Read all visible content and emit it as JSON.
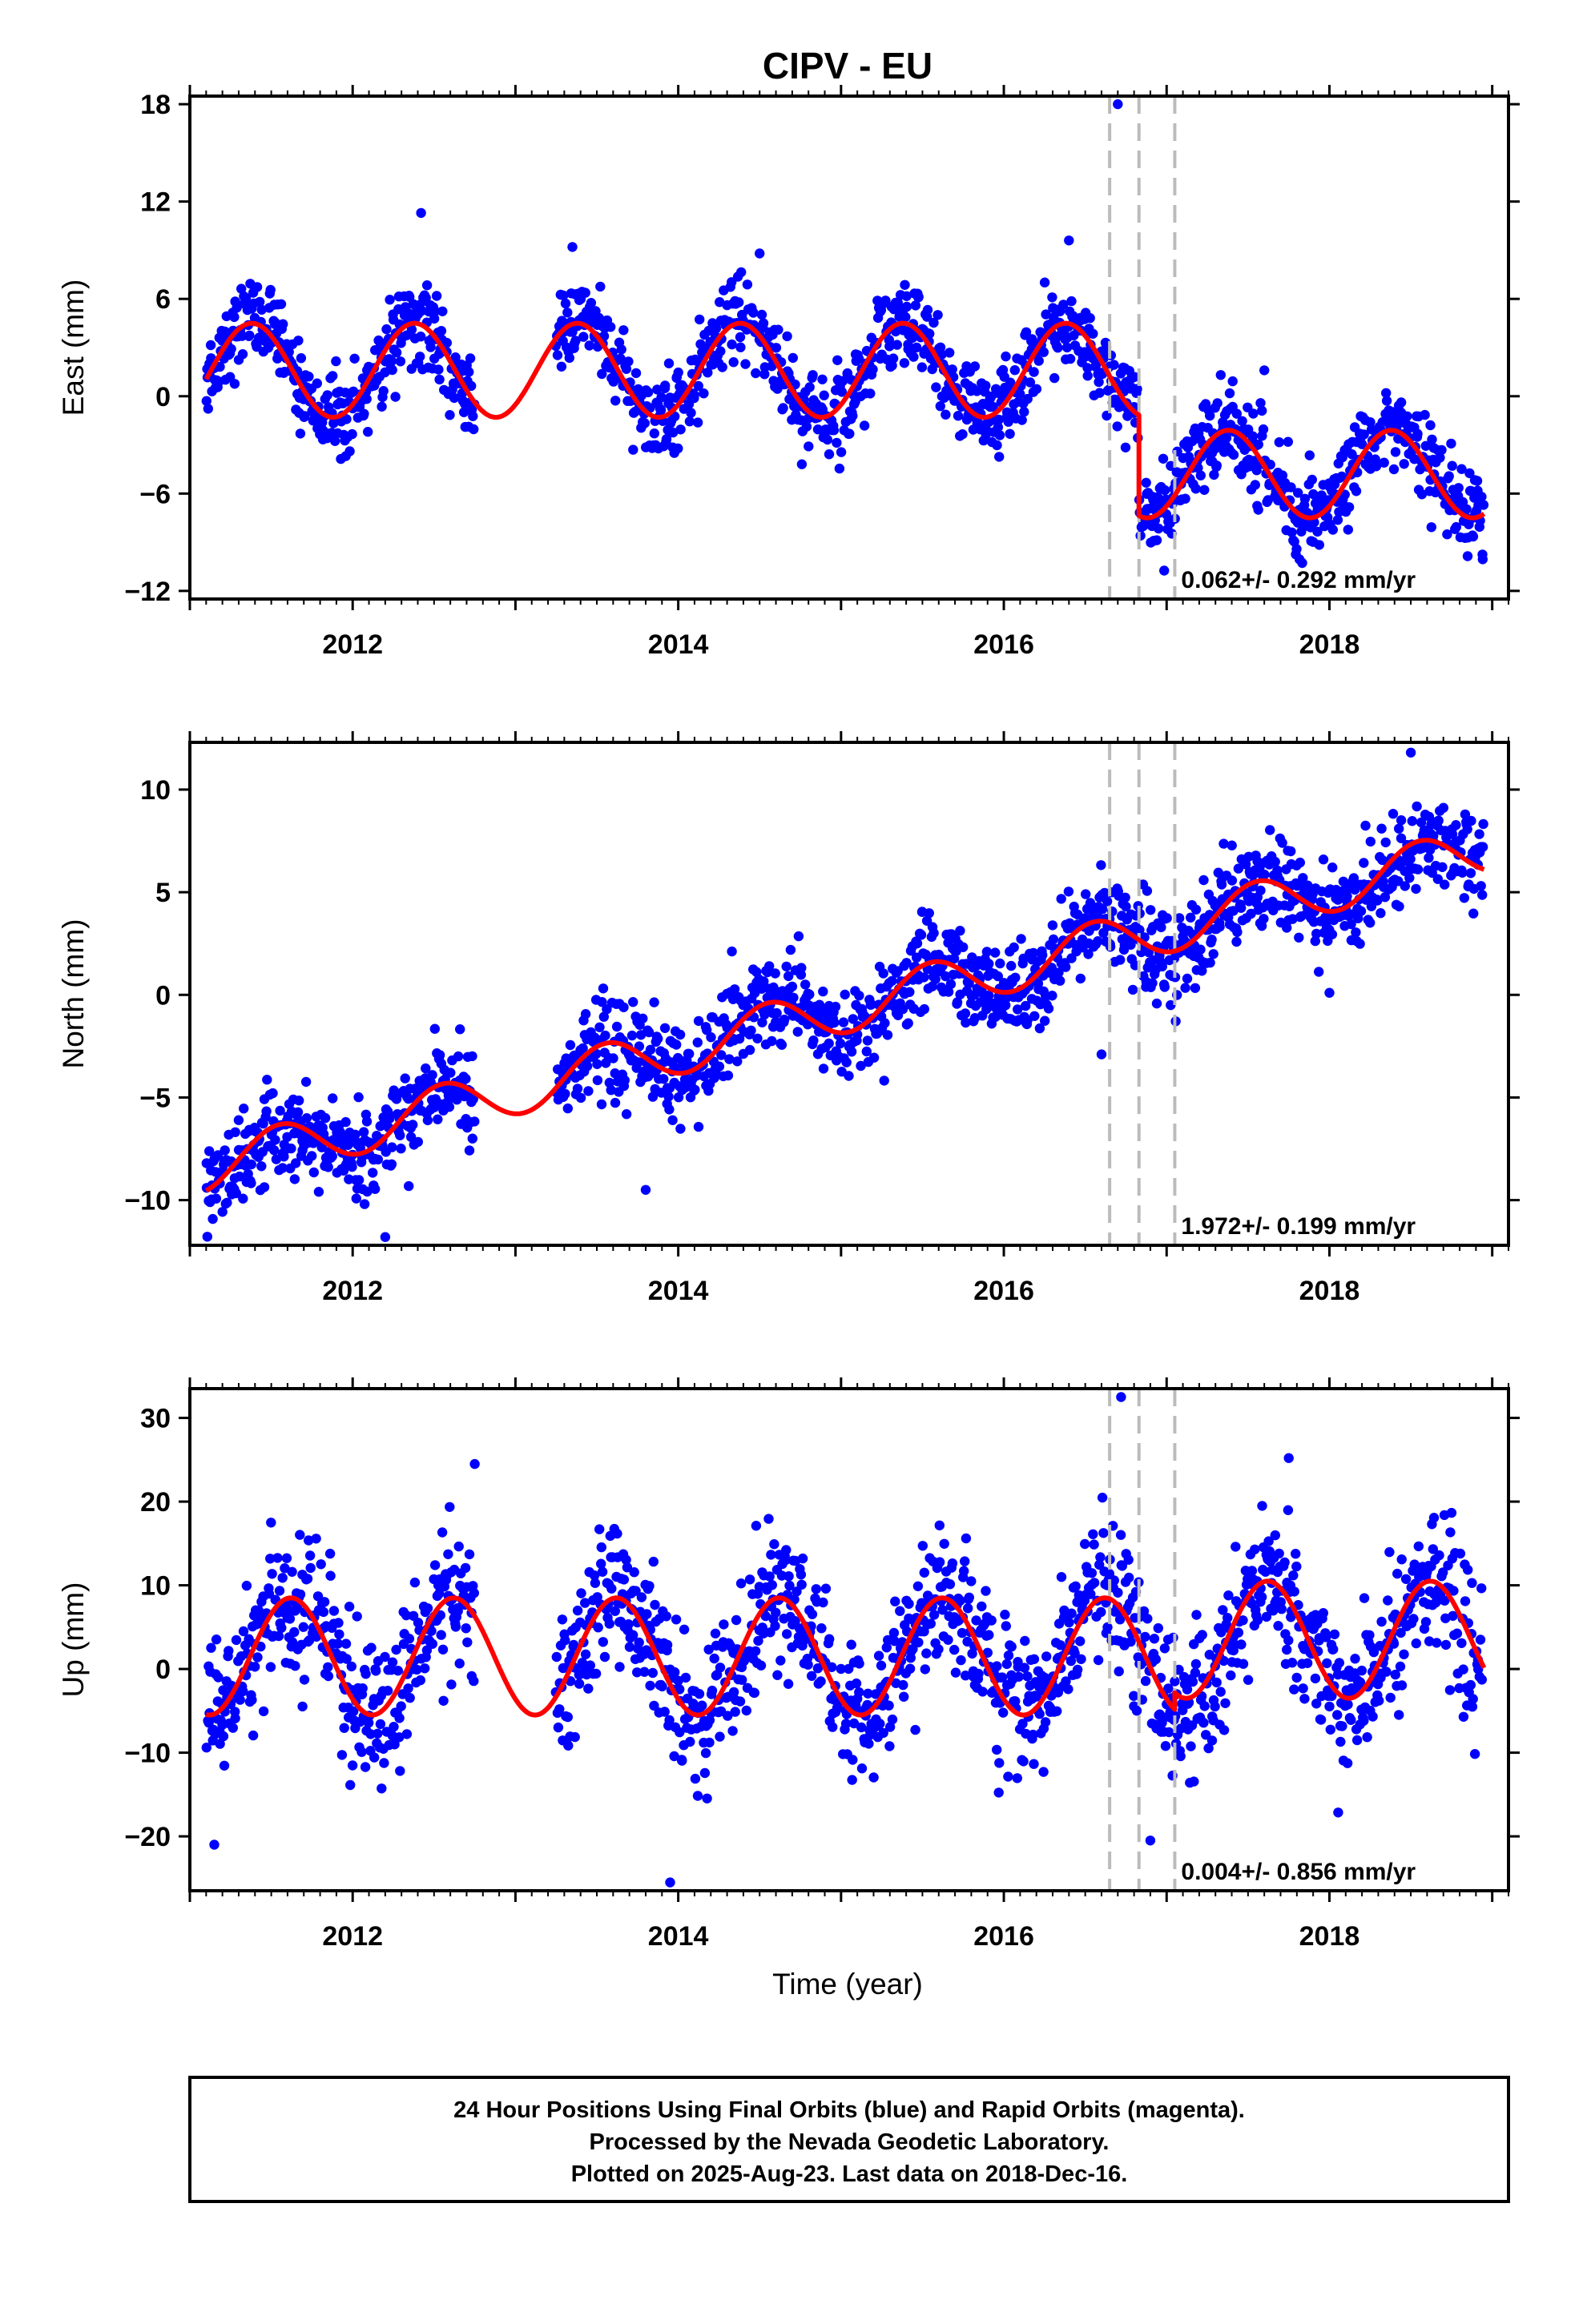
{
  "title": "CIPV - EU",
  "chart_data": [
    {
      "type": "scatter",
      "component": "East",
      "ylabel": "East (mm)",
      "xlabel": "",
      "xlim": [
        2011.0,
        2019.1
      ],
      "ylim": [
        -12.5,
        18.5
      ],
      "yticks": [
        -12,
        -6,
        0,
        6,
        12,
        18
      ],
      "xticks": [
        2012,
        2014,
        2016,
        2018
      ],
      "rate_label": "0.062+/- 0.292 mm/yr",
      "grid": false,
      "offset_lines": [
        2016.65,
        2016.83,
        2017.05
      ],
      "model": {
        "segments": [
          {
            "t0": 2011.1,
            "t1": 2016.83,
            "base": 1.6,
            "trend": 0.0,
            "amp": 2.9,
            "peak": 2011.38
          },
          {
            "t0": 2016.83,
            "t1": 2018.95,
            "base": -4.8,
            "trend": 0.0,
            "amp": 2.7,
            "peak": 2017.38
          }
        ],
        "observed_spans": [
          [
            2011.1,
            2012.75
          ],
          [
            2013.25,
            2018.95
          ]
        ],
        "spread": 1.3,
        "outliers": [
          [
            2016.7,
            18.0
          ],
          [
            2012.42,
            11.3
          ],
          [
            2013.35,
            9.2
          ],
          [
            2014.5,
            8.8
          ],
          [
            2016.4,
            9.6
          ],
          [
            2017.6,
            1.6
          ]
        ]
      }
    },
    {
      "type": "scatter",
      "component": "North",
      "ylabel": "North (mm)",
      "xlabel": "",
      "xlim": [
        2011.0,
        2019.1
      ],
      "ylim": [
        -12.2,
        12.3
      ],
      "yticks": [
        -10,
        -5,
        0,
        5,
        10
      ],
      "xticks": [
        2012,
        2014,
        2016,
        2018
      ],
      "rate_label": "1.972+/- 0.199 mm/yr",
      "grid": false,
      "offset_lines": [
        2016.65,
        2016.83,
        2017.05
      ],
      "model": {
        "segments": [
          {
            "t0": 2011.1,
            "t1": 2018.95,
            "base": -8.4,
            "trend": 1.972,
            "amp": 1.2,
            "peak": 2011.55
          }
        ],
        "observed_spans": [
          [
            2011.1,
            2012.75
          ],
          [
            2013.25,
            2018.95
          ]
        ],
        "spread": 1.1,
        "outliers": [
          [
            2018.5,
            11.8
          ],
          [
            2012.2,
            -11.8
          ],
          [
            2013.8,
            -9.5
          ],
          [
            2016.6,
            -2.9
          ],
          [
            2018.0,
            0.1
          ]
        ]
      }
    },
    {
      "type": "scatter",
      "component": "Up",
      "ylabel": "Up (mm)",
      "xlabel": "Time (year)",
      "xlim": [
        2011.0,
        2019.1
      ],
      "ylim": [
        -26.5,
        33.5
      ],
      "yticks": [
        -20,
        -10,
        0,
        10,
        20,
        30
      ],
      "xticks": [
        2012,
        2014,
        2016,
        2018
      ],
      "rate_label": "0.004+/- 0.856 mm/yr",
      "grid": false,
      "offset_lines": [
        2016.65,
        2016.83,
        2017.05
      ],
      "model": {
        "segments": [
          {
            "t0": 2011.1,
            "t1": 2017.05,
            "base": 1.5,
            "trend": 0.0,
            "amp": 7.0,
            "peak": 2011.62
          },
          {
            "t0": 2017.05,
            "t1": 2018.95,
            "base": 3.5,
            "trend": 0.0,
            "amp": 7.0,
            "peak": 2017.62
          }
        ],
        "observed_spans": [
          [
            2011.1,
            2012.75
          ],
          [
            2013.25,
            2018.95
          ]
        ],
        "spread": 4.2,
        "outliers": [
          [
            2016.72,
            32.5
          ],
          [
            2013.95,
            -25.5
          ],
          [
            2012.75,
            24.5
          ],
          [
            2017.75,
            25.2
          ],
          [
            2011.15,
            -21.0
          ],
          [
            2016.9,
            -20.5
          ]
        ]
      }
    }
  ],
  "footer": {
    "line1": "24 Hour Positions Using Final Orbits (blue) and Rapid Orbits (magenta).",
    "line2": "Processed by the Nevada Geodetic Laboratory.",
    "line3": "Plotted on 2025-Aug-23. Last data on 2018-Dec-16."
  },
  "colors": {
    "points": "#0000ff",
    "model": "#ff0000",
    "offset_lines": "#bbbbbb",
    "frame": "#000000"
  }
}
